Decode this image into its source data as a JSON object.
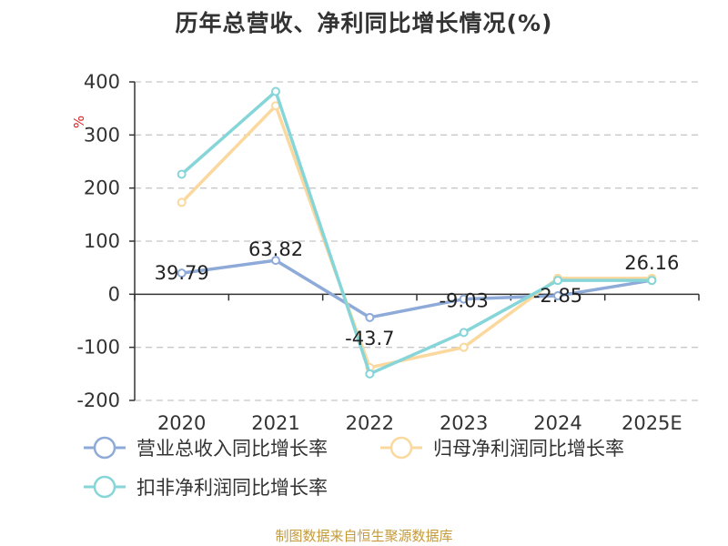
{
  "title": "历年总营收、净利同比增长情况(%)",
  "source": "制图数据来自恒生聚源数据库",
  "chart_data": {
    "type": "line",
    "title": "历年总营收、净利同比增长情况(%)",
    "ylabel": "%",
    "categories": [
      "2020",
      "2021",
      "2022",
      "2023",
      "2024",
      "2025E"
    ],
    "ylim": [
      -200,
      400
    ],
    "yticks": [
      "400",
      "300",
      "200",
      "100",
      "0",
      "-100",
      "-200"
    ],
    "ytick_values": [
      400,
      300,
      200,
      100,
      0,
      -100,
      -200
    ],
    "grid": true,
    "legend_position": "bottom",
    "series": [
      {
        "name": "营业总收入同比增长率",
        "color": "#8eaad8",
        "values": [
          39.79,
          63.82,
          -43.7,
          -9.03,
          -2.85,
          26.16
        ],
        "labels": [
          "39.79",
          "63.82",
          "-43.7",
          "-9.03",
          "-2.85",
          "26.16"
        ]
      },
      {
        "name": "归母净利润同比增长率",
        "color": "#fad89e",
        "values": [
          173,
          355,
          -138,
          -100,
          30,
          30
        ]
      },
      {
        "name": "扣非净利润同比增长率",
        "color": "#86d5d9",
        "values": [
          226,
          382,
          -150,
          -72,
          26,
          26
        ]
      }
    ]
  }
}
